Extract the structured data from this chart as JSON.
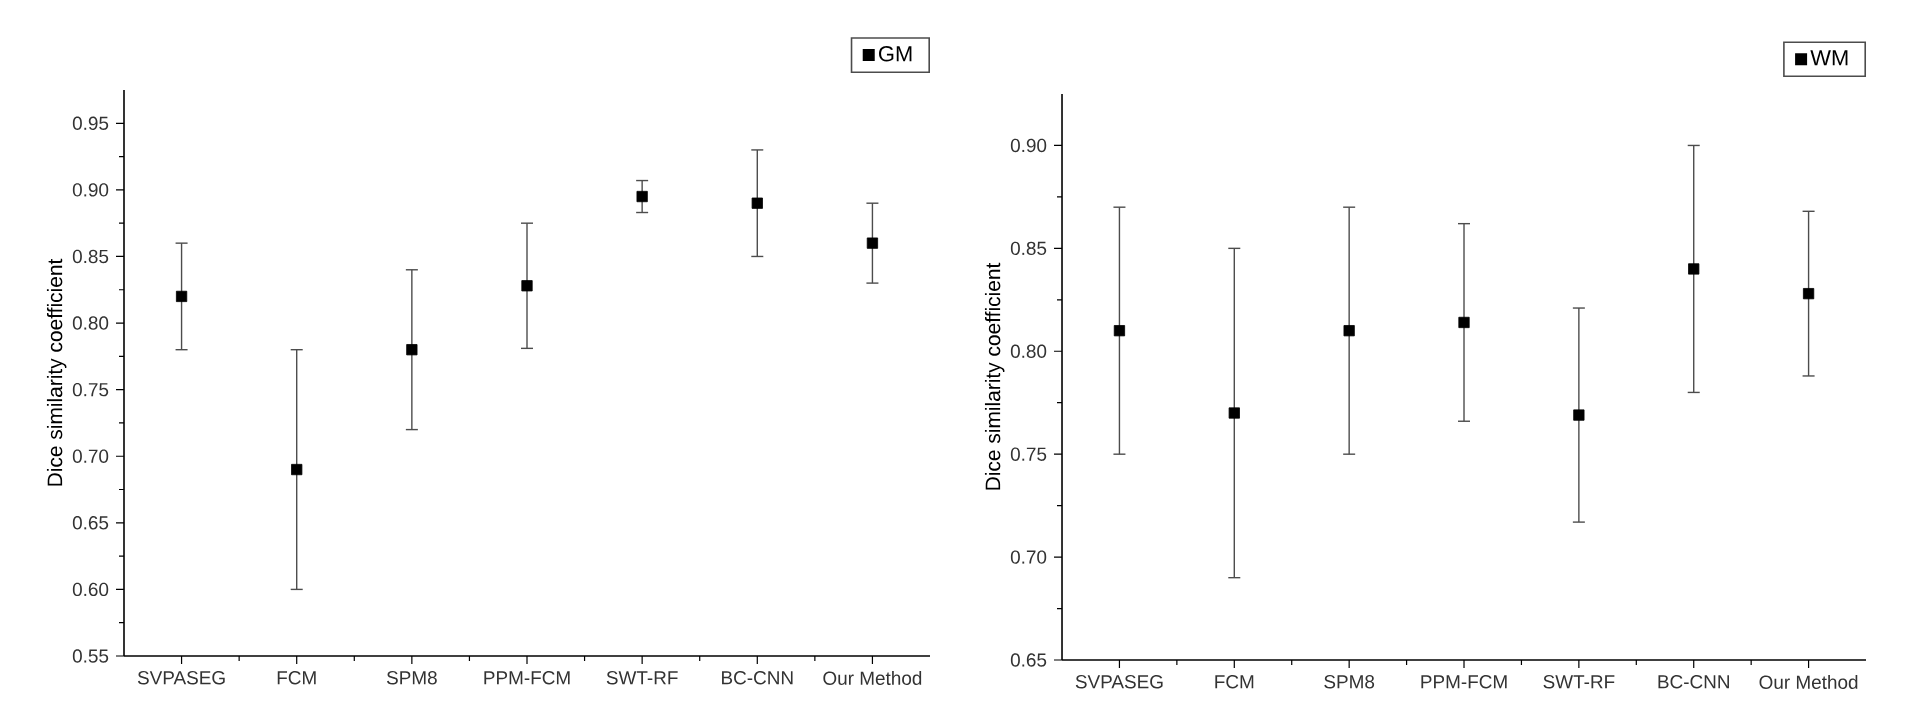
{
  "chart_data": [
    {
      "type": "scatter",
      "categories": [
        "SVPASEG",
        "FCM",
        "SPM8",
        "PPM-FCM",
        "SWT-RF",
        "BC-CNN",
        "Our Method"
      ],
      "ylabel": "Dice similarity coefficient",
      "ylim": [
        0.55,
        0.975
      ],
      "yticks": [
        0.55,
        {
          "value": 0.6,
          "label": "0.60"
        },
        0.65,
        {
          "value": 0.7,
          "label": "0.70"
        },
        0.75,
        {
          "value": 0.8,
          "label": "0.80"
        },
        0.85,
        {
          "value": 0.9,
          "label": "0.90"
        },
        0.95
      ],
      "legend": "top right",
      "marker": "square",
      "series": [
        {
          "name": "GM",
          "color": "#000000",
          "values": [
            0.82,
            0.69,
            0.78,
            0.828,
            0.895,
            0.89,
            0.86
          ],
          "errors": [
            [
              0.78,
              0.86
            ],
            [
              0.6,
              0.78
            ],
            [
              0.72,
              0.84
            ],
            [
              0.781,
              0.875
            ],
            [
              0.883,
              0.907
            ],
            [
              0.85,
              0.93
            ],
            [
              0.83,
              0.89
            ]
          ]
        }
      ]
    },
    {
      "type": "scatter",
      "categories": [
        "SVPASEG",
        "FCM",
        "SPM8",
        "PPM-FCM",
        "SWT-RF",
        "BC-CNN",
        "Our Method"
      ],
      "ylabel": "Dice similarity coefficient",
      "ylim": [
        0.65,
        0.925
      ],
      "yticks": [
        0.65,
        {
          "value": 0.7,
          "label": "0.70"
        },
        0.75,
        {
          "value": 0.8,
          "label": "0.80"
        },
        0.85,
        {
          "value": 0.9,
          "label": "0.90"
        }
      ],
      "legend": "top right",
      "marker": "square",
      "series": [
        {
          "name": "WM",
          "color": "#000000",
          "values": [
            0.81,
            0.77,
            0.81,
            0.814,
            0.769,
            0.84,
            0.828
          ],
          "errors": [
            [
              0.75,
              0.87
            ],
            [
              0.69,
              0.85
            ],
            [
              0.75,
              0.87
            ],
            [
              0.766,
              0.862
            ],
            [
              0.717,
              0.821
            ],
            [
              0.78,
              0.9
            ],
            [
              0.788,
              0.868
            ]
          ]
        }
      ]
    }
  ]
}
